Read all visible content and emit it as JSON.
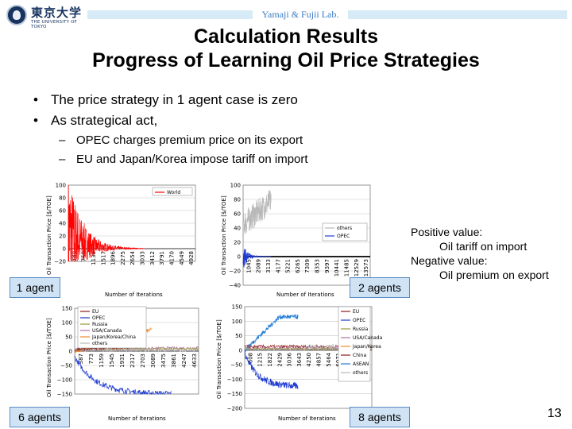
{
  "header": {
    "lab": "Yamaji & Fujii Lab.",
    "logo_jp": "東京大学",
    "logo_en": "THE UNIVERSITY OF TOKYO"
  },
  "title": {
    "line1": "Calculation Results",
    "line2": "Progress of Learning Oil Price Strategies"
  },
  "bullets": {
    "b1": "The price strategy in 1 agent case is zero",
    "b2": "As strategical act,",
    "b2a": "OPEC charges premium price on its export",
    "b2b": "EU and Japan/Korea impose tariff on import"
  },
  "note": {
    "pos": "Positive value:",
    "pos_detail": "Oil tariff on import",
    "neg": "Negative value:",
    "neg_detail": "Oil premium on export"
  },
  "page_number": "13",
  "colors": {
    "red": "#ff0000",
    "blue": "#1f3bd1",
    "gray": "#b8b8b8",
    "olive": "#9a9a3a",
    "purple": "#b06fa8",
    "orange": "#f08a2a",
    "lightblue": "#1e7ad8",
    "darkred": "#8b1a1a",
    "black": "#000000"
  },
  "chart_data": [
    {
      "type": "line",
      "tag": "1 agent",
      "ylabel": "Oil Transaction Price [$/TOE]",
      "xlabel": "Number of Iterations",
      "ylim": [
        -20,
        100
      ],
      "yticks": [
        "100",
        "80",
        "60",
        "40",
        "20",
        "0",
        "−20"
      ],
      "xticks": [
        "380",
        "759",
        "1138",
        "1517",
        "1896",
        "2275",
        "2654",
        "3033",
        "3412",
        "3791",
        "4170",
        "4549",
        "4928"
      ],
      "legend_placement": "top-right",
      "series": [
        {
          "name": "World",
          "color": "#ff0000"
        }
      ]
    },
    {
      "type": "line",
      "tag": "2 agents",
      "ylabel": "Oil Transaction Price [$/TOE]",
      "xlabel": "Number of Iterations",
      "ylim": [
        -40,
        100
      ],
      "yticks": [
        "100",
        "80",
        "60",
        "40",
        "20",
        "0",
        "−20",
        "−40"
      ],
      "xticks": [
        "1045",
        "2089",
        "3133",
        "4177",
        "5221",
        "6265",
        "7309",
        "8353",
        "9397",
        "10441",
        "11485",
        "12529",
        "13573"
      ],
      "legend_placement": "right",
      "series": [
        {
          "name": "others",
          "color": "#b8b8b8"
        },
        {
          "name": "OPEC",
          "color": "#1f3bd1"
        }
      ]
    },
    {
      "type": "line",
      "tag": "6 agents",
      "ylabel": "Oil Transaction Price [$/TOE]",
      "xlabel": "Number of Iterations",
      "ylim": [
        -150,
        150
      ],
      "yticks": [
        "150",
        "100",
        "50",
        "0",
        "−50",
        "−100",
        "−150"
      ],
      "xticks": [
        "387",
        "773",
        "1159",
        "1545",
        "1931",
        "2317",
        "2703",
        "3089",
        "3475",
        "3861",
        "4247",
        "4633"
      ],
      "legend_placement": "top-left",
      "series": [
        {
          "name": "EU",
          "color": "#8b1a1a"
        },
        {
          "name": "OPEC",
          "color": "#1f3bd1"
        },
        {
          "name": "Russia",
          "color": "#9a9a3a"
        },
        {
          "name": "USA/Canada",
          "color": "#b06fa8"
        },
        {
          "name": "Japan/Korea/China",
          "color": "#f08a2a"
        },
        {
          "name": "others",
          "color": "#b8b8b8"
        }
      ]
    },
    {
      "type": "line",
      "tag": "8 agents",
      "ylabel": "Oil Transaction Price [$/TOE]",
      "xlabel": "Number of Iterations",
      "ylim": [
        -200,
        150
      ],
      "yticks": [
        "150",
        "100",
        "50",
        "0",
        "−50",
        "−100",
        "−150",
        "−200"
      ],
      "xticks": [
        "608",
        "1215",
        "1822",
        "2429",
        "3036",
        "3643",
        "4250",
        "4857",
        "5464",
        "6071",
        "6678",
        "7285",
        "7892"
      ],
      "legend_placement": "right",
      "series": [
        {
          "name": "EU",
          "color": "#8b1a1a"
        },
        {
          "name": "OPEC",
          "color": "#1f3bd1"
        },
        {
          "name": "Russia",
          "color": "#9a9a3a"
        },
        {
          "name": "USA/Canada",
          "color": "#b06fa8"
        },
        {
          "name": "Japan/Korea",
          "color": "#f08a2a"
        },
        {
          "name": "China",
          "color": "#8b1a1a"
        },
        {
          "name": "ASEAN",
          "color": "#1e7ad8"
        },
        {
          "name": "others",
          "color": "#b8b8b8"
        }
      ]
    }
  ]
}
